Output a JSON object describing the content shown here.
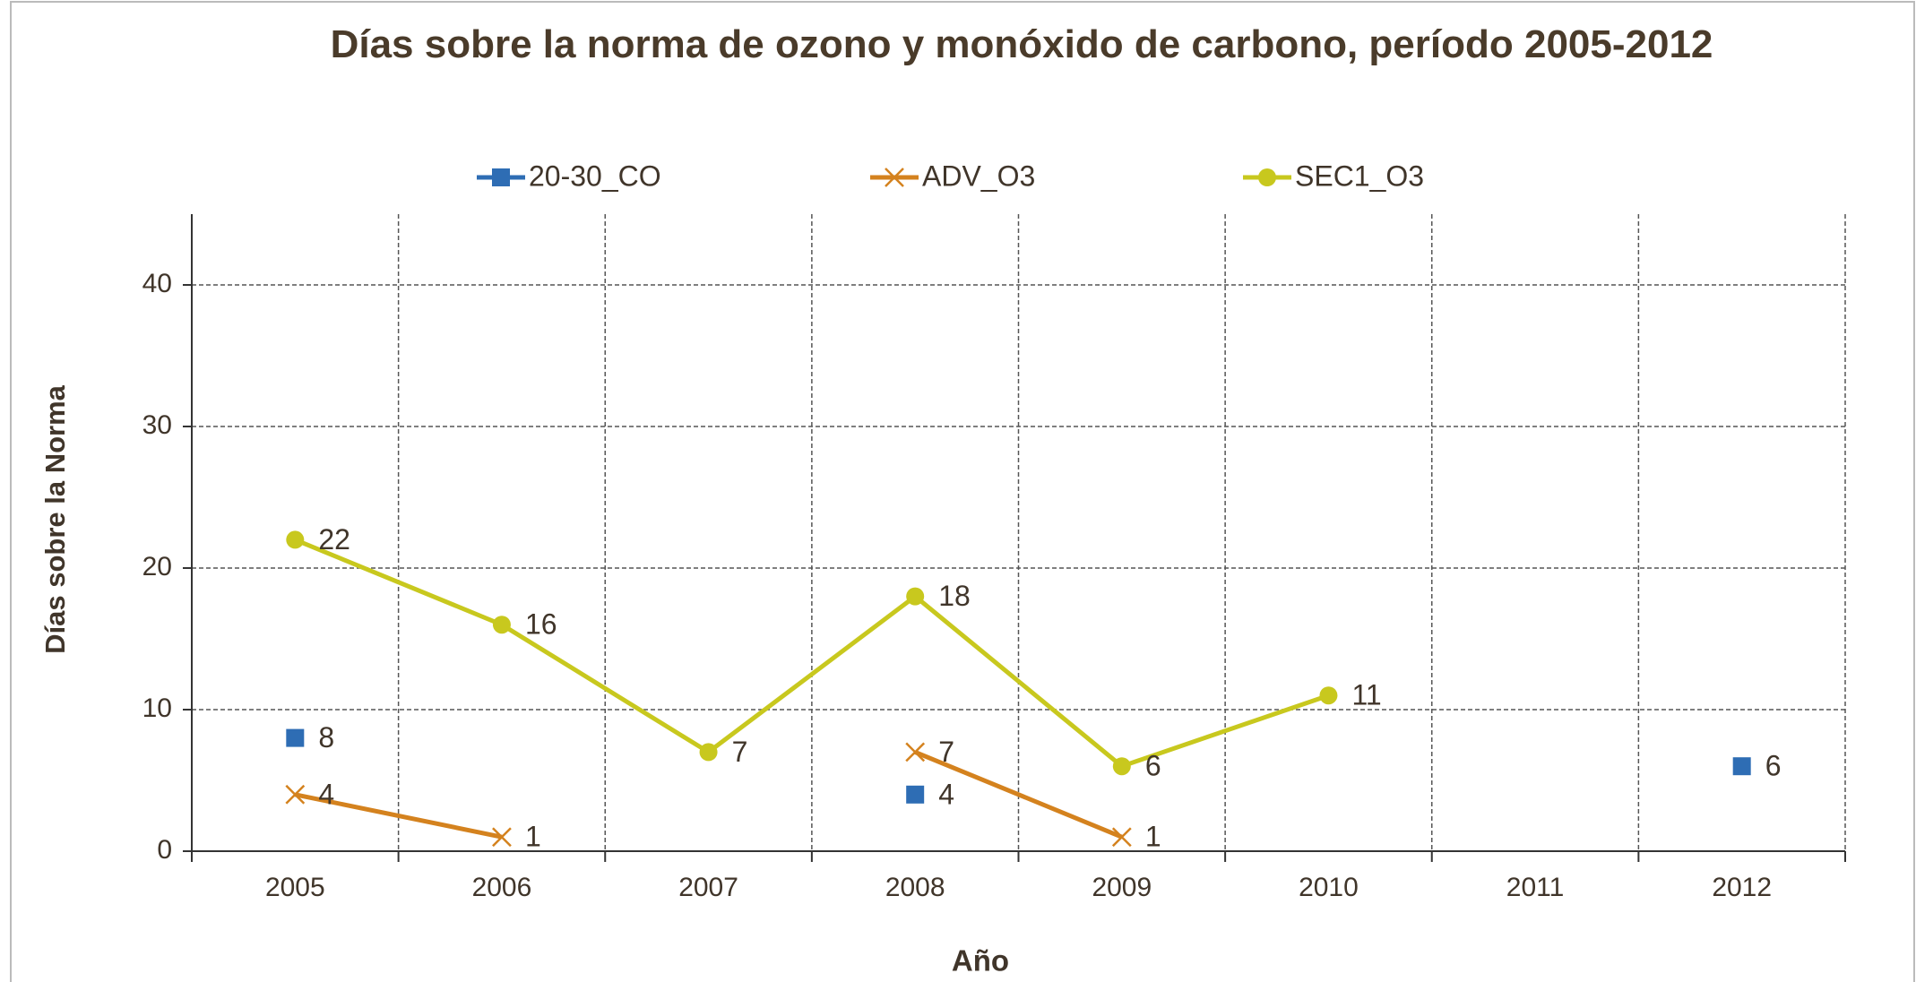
{
  "chart_data": {
    "type": "line",
    "title": "Días sobre la norma de ozono y monóxido de carbono, período 2005-2012",
    "xlabel": "Año",
    "ylabel": "Días sobre la Norma",
    "categories": [
      "2005",
      "2006",
      "2007",
      "2008",
      "2009",
      "2010",
      "2011",
      "2012"
    ],
    "series": [
      {
        "name": "20-30_CO",
        "color": "#2e6db4",
        "marker": "square",
        "values": [
          8,
          null,
          null,
          4,
          null,
          null,
          null,
          6
        ]
      },
      {
        "name": "ADV_O3",
        "color": "#d4821e",
        "marker": "x",
        "values": [
          4,
          1,
          null,
          7,
          1,
          null,
          null,
          null
        ]
      },
      {
        "name": "SEC1_O3",
        "color": "#c8c81e",
        "marker": "circle",
        "values": [
          22,
          16,
          7,
          18,
          6,
          11,
          null,
          null
        ]
      }
    ],
    "ylim": [
      0,
      45
    ],
    "yticks": [
      0,
      10,
      20,
      30,
      40
    ],
    "grid": true,
    "legend": "top"
  }
}
